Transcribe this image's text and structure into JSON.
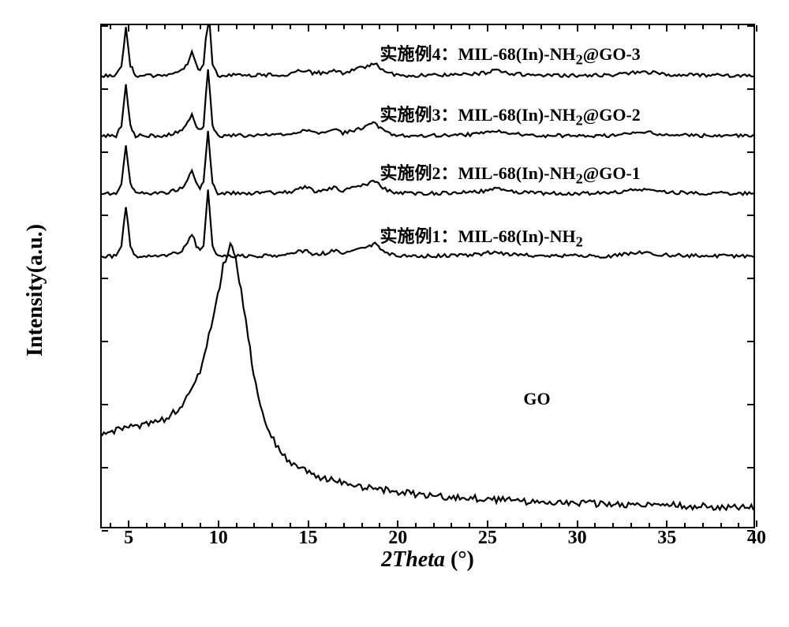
{
  "chart": {
    "type": "line-xrd",
    "background_color": "#ffffff",
    "border_color": "#000000",
    "xlabel": "2Theta (°)",
    "ylabel": "Intensity(a.u.)",
    "label_fontsize": 28,
    "tick_fontsize": 24,
    "xlim": [
      3.5,
      40
    ],
    "x_ticks": [
      5,
      10,
      15,
      20,
      25,
      30,
      35,
      40
    ],
    "x_minor_step": 1,
    "line_color": "#000000",
    "line_width": 2.2,
    "series": [
      {
        "name": "GO",
        "label": "GO",
        "label_pos_x": 27,
        "label_pos_y_pct": 72,
        "baseline_pct": 96,
        "points": [
          [
            3.5,
            82
          ],
          [
            5,
            80
          ],
          [
            6,
            79.5
          ],
          [
            7,
            78.5
          ],
          [
            8,
            76
          ],
          [
            8.5,
            73
          ],
          [
            9,
            69
          ],
          [
            9.5,
            62
          ],
          [
            10,
            54
          ],
          [
            10.3,
            48
          ],
          [
            10.7,
            44
          ],
          [
            11,
            46
          ],
          [
            11.3,
            53
          ],
          [
            11.7,
            62
          ],
          [
            12,
            70
          ],
          [
            12.5,
            77
          ],
          [
            13,
            82
          ],
          [
            13.5,
            85
          ],
          [
            14,
            87
          ],
          [
            15,
            89
          ],
          [
            16,
            90.5
          ],
          [
            18,
            92
          ],
          [
            20,
            93
          ],
          [
            22,
            93.8
          ],
          [
            25,
            94.5
          ],
          [
            28,
            95
          ],
          [
            30,
            95.3
          ],
          [
            33,
            95.6
          ],
          [
            36,
            95.8
          ],
          [
            38,
            96
          ],
          [
            40,
            96
          ]
        ]
      },
      {
        "name": "example1",
        "label": "MIL-68(In)-NH₂",
        "prefix": "实施例1：",
        "label_pos_x": 19,
        "label_pos_y_pct": 39,
        "baseline_pct": 46,
        "points": [
          [
            3.5,
            46
          ],
          [
            4.3,
            46
          ],
          [
            4.6,
            44
          ],
          [
            4.85,
            36
          ],
          [
            5.1,
            44
          ],
          [
            5.4,
            46
          ],
          [
            6,
            46
          ],
          [
            7,
            46
          ],
          [
            7.5,
            45.5
          ],
          [
            8,
            45
          ],
          [
            8.3,
            43.5
          ],
          [
            8.55,
            41.5
          ],
          [
            8.8,
            44
          ],
          [
            9,
            45
          ],
          [
            9.2,
            44
          ],
          [
            9.45,
            33
          ],
          [
            9.7,
            44
          ],
          [
            10,
            46
          ],
          [
            11,
            46
          ],
          [
            12,
            46
          ],
          [
            14,
            45.8
          ],
          [
            14.5,
            45.2
          ],
          [
            15,
            44.8
          ],
          [
            15.3,
            45.5
          ],
          [
            16,
            45.5
          ],
          [
            16.5,
            44.8
          ],
          [
            17,
            45.5
          ],
          [
            17.5,
            45
          ],
          [
            18,
            44.5
          ],
          [
            18.5,
            44
          ],
          [
            18.8,
            43.5
          ],
          [
            19.1,
            44.5
          ],
          [
            19.5,
            45.5
          ],
          [
            20,
            46
          ],
          [
            22,
            46
          ],
          [
            24,
            45.8
          ],
          [
            25,
            45.5
          ],
          [
            25.5,
            45
          ],
          [
            26,
            45.5
          ],
          [
            28,
            46
          ],
          [
            30,
            46
          ],
          [
            32,
            46
          ],
          [
            33,
            45.5
          ],
          [
            34,
            45.3
          ],
          [
            35,
            45.8
          ],
          [
            37,
            46
          ],
          [
            40,
            46
          ]
        ]
      },
      {
        "name": "example2",
        "label": "MIL-68(In)-NH₂@GO-1",
        "prefix": "实施例2：",
        "label_pos_x": 19,
        "label_pos_y_pct": 26.5,
        "baseline_pct": 33.5,
        "points": [
          [
            3.5,
            33.5
          ],
          [
            4.3,
            33.5
          ],
          [
            4.6,
            31.5
          ],
          [
            4.85,
            24
          ],
          [
            5.1,
            31.5
          ],
          [
            5.4,
            33.5
          ],
          [
            6,
            33.5
          ],
          [
            7,
            33.5
          ],
          [
            7.5,
            33
          ],
          [
            8,
            32.5
          ],
          [
            8.3,
            31
          ],
          [
            8.55,
            29
          ],
          [
            8.8,
            31.5
          ],
          [
            9,
            32.5
          ],
          [
            9.2,
            31.5
          ],
          [
            9.45,
            21
          ],
          [
            9.7,
            31.5
          ],
          [
            10,
            33.5
          ],
          [
            11,
            33.5
          ],
          [
            12,
            33.5
          ],
          [
            14,
            33.3
          ],
          [
            14.5,
            32.7
          ],
          [
            15,
            32.3
          ],
          [
            15.3,
            33
          ],
          [
            16,
            33
          ],
          [
            16.5,
            32.3
          ],
          [
            17,
            33
          ],
          [
            17.5,
            32.5
          ],
          [
            18,
            32
          ],
          [
            18.5,
            31.5
          ],
          [
            18.8,
            31
          ],
          [
            19.1,
            32
          ],
          [
            19.5,
            33
          ],
          [
            20,
            33.5
          ],
          [
            22,
            33.5
          ],
          [
            24,
            33.3
          ],
          [
            25,
            33
          ],
          [
            25.5,
            32.5
          ],
          [
            26,
            33
          ],
          [
            28,
            33.5
          ],
          [
            30,
            33.5
          ],
          [
            32,
            33.5
          ],
          [
            33,
            33
          ],
          [
            34,
            32.8
          ],
          [
            35,
            33.3
          ],
          [
            37,
            33.5
          ],
          [
            40,
            33.5
          ]
        ]
      },
      {
        "name": "example3",
        "label": "MIL-68(In)-NH₂@GO-2",
        "prefix": "实施例3：",
        "label_pos_x": 19,
        "label_pos_y_pct": 15,
        "baseline_pct": 22,
        "points": [
          [
            3.5,
            22
          ],
          [
            4.3,
            22
          ],
          [
            4.6,
            20
          ],
          [
            4.85,
            11.5
          ],
          [
            5.1,
            20
          ],
          [
            5.4,
            22
          ],
          [
            6,
            22
          ],
          [
            7,
            22
          ],
          [
            7.5,
            21.5
          ],
          [
            8,
            21
          ],
          [
            8.3,
            19.5
          ],
          [
            8.55,
            17.5
          ],
          [
            8.8,
            20
          ],
          [
            9,
            21
          ],
          [
            9.2,
            20
          ],
          [
            9.45,
            8.5
          ],
          [
            9.7,
            20
          ],
          [
            10,
            22
          ],
          [
            11,
            22
          ],
          [
            12,
            22
          ],
          [
            14,
            21.8
          ],
          [
            14.5,
            21.2
          ],
          [
            15,
            20.8
          ],
          [
            15.3,
            21.5
          ],
          [
            16,
            21.5
          ],
          [
            16.5,
            20.8
          ],
          [
            17,
            21.5
          ],
          [
            17.5,
            21
          ],
          [
            18,
            20.5
          ],
          [
            18.5,
            20
          ],
          [
            18.8,
            19.5
          ],
          [
            19.1,
            20.5
          ],
          [
            19.5,
            21.5
          ],
          [
            20,
            22
          ],
          [
            22,
            22
          ],
          [
            24,
            21.8
          ],
          [
            25,
            21.5
          ],
          [
            25.5,
            21
          ],
          [
            26,
            21.5
          ],
          [
            28,
            22
          ],
          [
            30,
            22
          ],
          [
            32,
            22
          ],
          [
            33,
            21.5
          ],
          [
            34,
            21.3
          ],
          [
            35,
            21.8
          ],
          [
            37,
            22
          ],
          [
            40,
            22
          ]
        ]
      },
      {
        "name": "example4",
        "label": "MIL-68(In)-NH₂@GO-3",
        "prefix": "实施例4：",
        "label_pos_x": 19,
        "label_pos_y_pct": 3,
        "baseline_pct": 10,
        "points": [
          [
            3.5,
            10
          ],
          [
            4.3,
            10
          ],
          [
            4.6,
            8
          ],
          [
            4.85,
            0.5
          ],
          [
            5.1,
            8
          ],
          [
            5.4,
            10
          ],
          [
            6,
            10
          ],
          [
            7,
            10
          ],
          [
            7.5,
            9.5
          ],
          [
            8,
            9
          ],
          [
            8.3,
            7.5
          ],
          [
            8.55,
            5.5
          ],
          [
            8.8,
            8
          ],
          [
            9,
            9
          ],
          [
            9.2,
            8
          ],
          [
            9.45,
            -3.5
          ],
          [
            9.55,
            -3.5
          ],
          [
            9.7,
            8
          ],
          [
            10,
            10
          ],
          [
            11,
            10
          ],
          [
            12,
            10
          ],
          [
            14,
            9.8
          ],
          [
            14.5,
            9.2
          ],
          [
            15,
            8.8
          ],
          [
            15.3,
            9.5
          ],
          [
            16,
            9.5
          ],
          [
            16.5,
            8.8
          ],
          [
            17,
            9.5
          ],
          [
            17.5,
            9
          ],
          [
            18,
            8.5
          ],
          [
            18.5,
            8
          ],
          [
            18.8,
            7.5
          ],
          [
            19.1,
            8.5
          ],
          [
            19.5,
            9.5
          ],
          [
            20,
            10
          ],
          [
            22,
            10
          ],
          [
            24,
            9.8
          ],
          [
            25,
            9.5
          ],
          [
            25.5,
            9
          ],
          [
            26,
            9.5
          ],
          [
            28,
            10
          ],
          [
            30,
            10
          ],
          [
            32,
            10
          ],
          [
            33,
            9.5
          ],
          [
            34,
            9.3
          ],
          [
            35,
            9.8
          ],
          [
            37,
            10
          ],
          [
            40,
            10
          ]
        ]
      }
    ]
  }
}
